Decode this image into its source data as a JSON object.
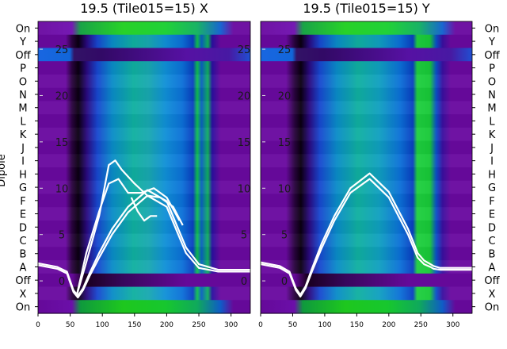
{
  "chart_data": [
    {
      "type": "heatmap",
      "title": "19.5 (Tile015=15) X",
      "ylabel": "Dipole",
      "xlim": [
        0,
        330
      ],
      "x_ticks": [
        "0",
        "50",
        "100",
        "150",
        "200",
        "250",
        "300"
      ],
      "rows": [
        "On",
        "Y",
        "Off",
        "P",
        "O",
        "N",
        "M",
        "L",
        "K",
        "J",
        "I",
        "H",
        "G",
        "F",
        "E",
        "D",
        "C",
        "B",
        "A",
        "Off",
        "X",
        "On"
      ],
      "overlay_ylim": [
        -3.5,
        28
      ],
      "overlay_ticks": [
        "0",
        "5",
        "10",
        "15",
        "20",
        "25"
      ],
      "overlay_curves": [
        {
          "x": [
            0,
            30,
            45,
            55,
            62,
            70,
            80,
            95,
            115,
            140,
            170,
            200,
            230,
            250,
            265,
            280,
            330
          ],
          "y": [
            1.7,
            1.3,
            0.8,
            -1.2,
            -1.8,
            -1.0,
            0.5,
            2.5,
            5.0,
            7.4,
            9.2,
            8.0,
            3.0,
            1.4,
            1.2,
            1.0,
            1.0
          ]
        },
        {
          "x": [
            0,
            30,
            45,
            55,
            62,
            70,
            80,
            95,
            115,
            140,
            170,
            200,
            230,
            250,
            265,
            280,
            330
          ],
          "y": [
            1.9,
            1.5,
            1.0,
            -1.0,
            -1.6,
            -0.8,
            0.8,
            3.0,
            5.6,
            8.0,
            9.8,
            8.6,
            3.6,
            1.8,
            1.5,
            1.2,
            1.2
          ]
        },
        {
          "x": [
            60,
            75,
            95,
            110,
            120,
            130,
            150,
            170,
            190,
            210,
            225
          ],
          "y": [
            -1.6,
            2.0,
            7.0,
            12.5,
            13.0,
            12.0,
            10.5,
            9.2,
            9.0,
            8.0,
            6.0
          ]
        },
        {
          "x": [
            60,
            75,
            95,
            110,
            125,
            140,
            160,
            180,
            200,
            220
          ],
          "y": [
            -1.6,
            3.0,
            7.5,
            10.5,
            11.0,
            9.5,
            9.5,
            10.0,
            9.0,
            6.5
          ]
        },
        {
          "x": [
            145,
            155,
            165,
            175,
            185
          ],
          "y": [
            9.0,
            7.5,
            6.5,
            7.0,
            7.0
          ]
        }
      ]
    },
    {
      "type": "heatmap",
      "title": "19.5 (Tile015=15) Y",
      "xlim": [
        0,
        330
      ],
      "x_ticks": [
        "0",
        "50",
        "100",
        "150",
        "200",
        "250",
        "300"
      ],
      "rows": [
        "On",
        "Y",
        "Off",
        "P",
        "O",
        "N",
        "M",
        "L",
        "K",
        "J",
        "I",
        "H",
        "G",
        "F",
        "E",
        "D",
        "C",
        "B",
        "A",
        "Off",
        "X",
        "On"
      ],
      "overlay_ylim": [
        -3.5,
        28
      ],
      "overlay_ticks": [
        "0",
        "5",
        "10",
        "15",
        "20",
        "25"
      ],
      "overlay_curves": [
        {
          "x": [
            0,
            30,
            45,
            55,
            62,
            70,
            80,
            95,
            115,
            140,
            170,
            200,
            230,
            245,
            255,
            265,
            270,
            280,
            330
          ],
          "y": [
            1.8,
            1.4,
            0.8,
            -1.0,
            -1.7,
            -0.8,
            1.0,
            3.5,
            6.5,
            9.5,
            11.0,
            9.0,
            5.0,
            2.5,
            1.8,
            1.5,
            1.3,
            1.2,
            1.2
          ]
        },
        {
          "x": [
            0,
            30,
            45,
            55,
            62,
            70,
            80,
            95,
            115,
            140,
            170,
            200,
            230,
            245,
            255,
            265,
            270,
            280,
            330
          ],
          "y": [
            2.0,
            1.6,
            1.0,
            -0.8,
            -1.5,
            -0.6,
            1.3,
            4.0,
            7.0,
            10.0,
            11.6,
            9.6,
            5.6,
            3.0,
            2.2,
            1.8,
            1.6,
            1.4,
            1.4
          ]
        }
      ]
    }
  ]
}
